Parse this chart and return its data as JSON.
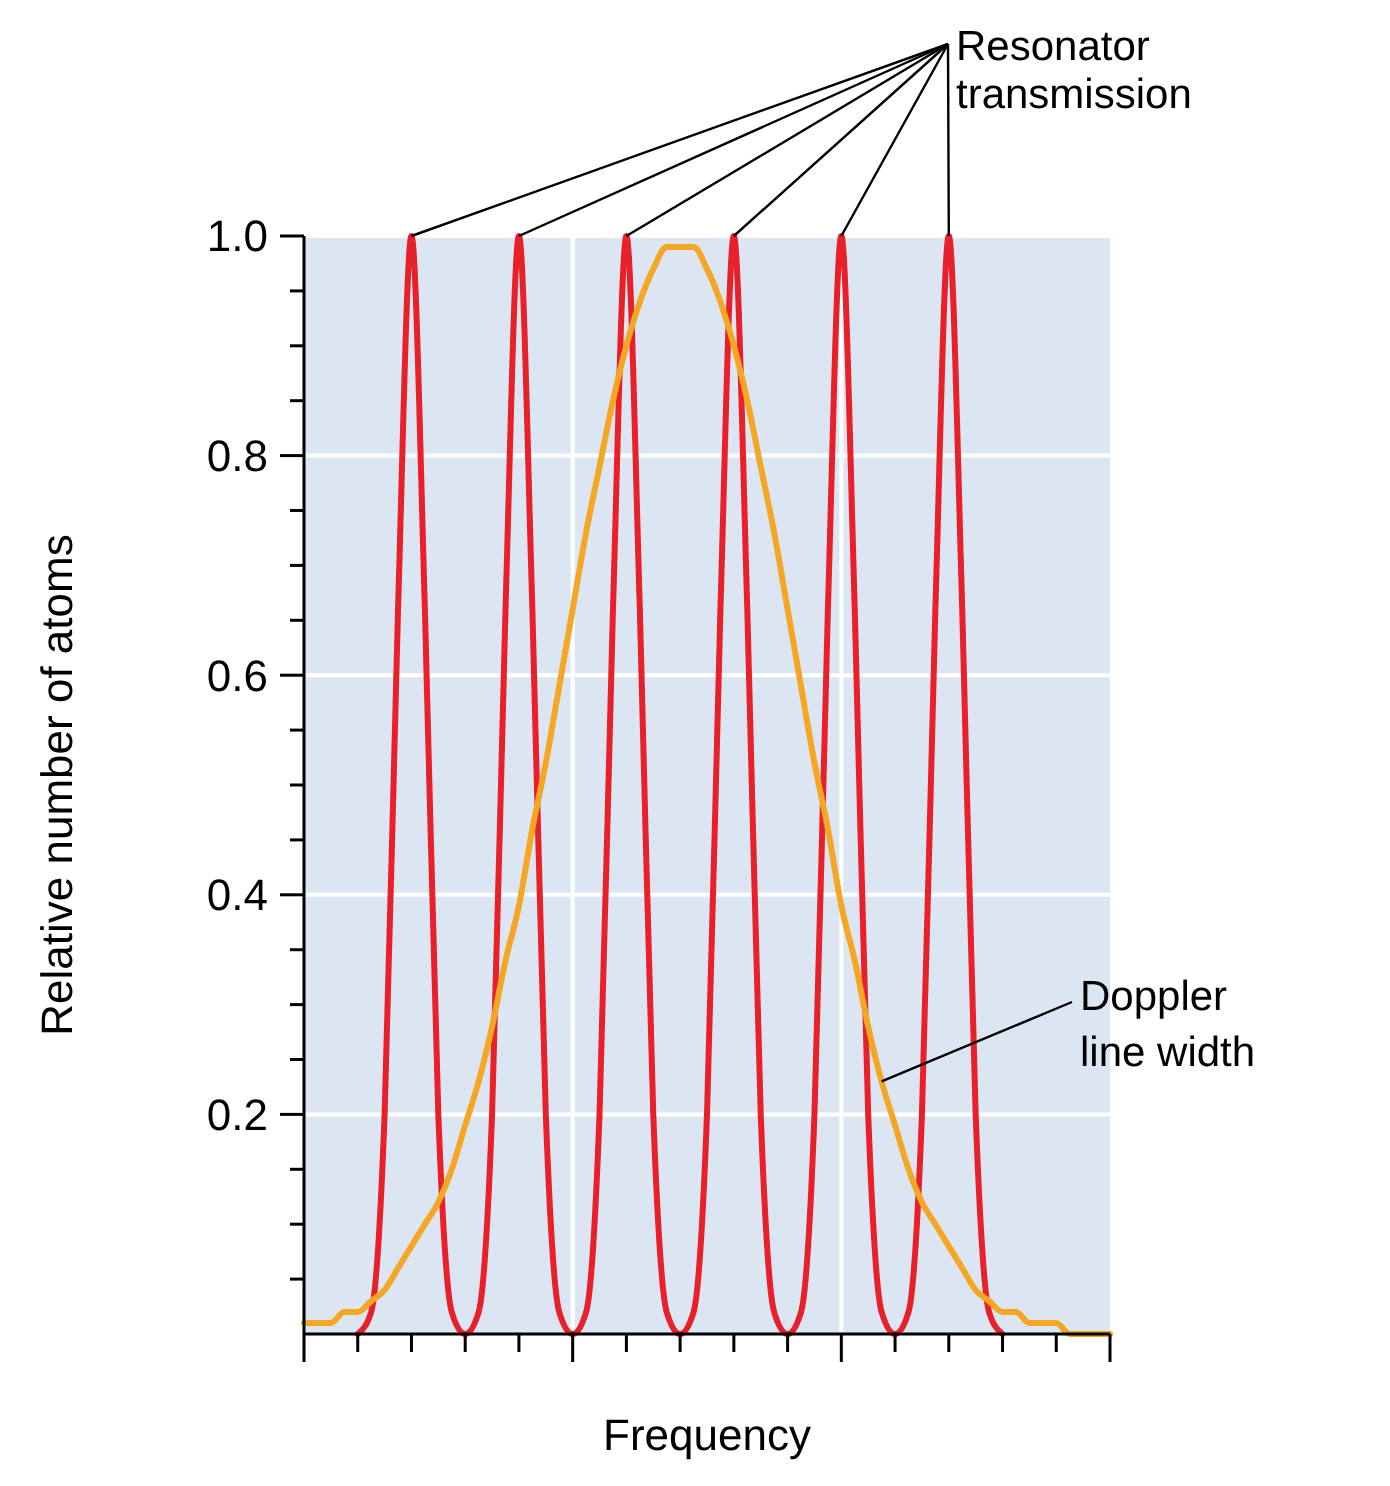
{
  "chart_data": {
    "type": "line",
    "xlabel": "Frequency",
    "ylabel": "Relative number of atoms",
    "categories": [
      null,
      null,
      null,
      null,
      null,
      null,
      null,
      null,
      null,
      null,
      null,
      null,
      null,
      null,
      null,
      null,
      null,
      null,
      null,
      null,
      null,
      null,
      null,
      null,
      null,
      null,
      null,
      null,
      null,
      null,
      null,
      null,
      null,
      null,
      null,
      null,
      null,
      null,
      null,
      null,
      null,
      null,
      null,
      null,
      null,
      null,
      null,
      null,
      null,
      null,
      null,
      null,
      null,
      null,
      null,
      null,
      null,
      null,
      null,
      null,
      null
    ],
    "series": [
      {
        "color": "#e8202a",
        "values": [
          null,
          null,
          null,
          null,
          0,
          0.02,
          0.2,
          0.66,
          1,
          0.66,
          0.2,
          0.02,
          0,
          0.02,
          0.2,
          0.66,
          1,
          0.66,
          0.2,
          0.02,
          0,
          0.02,
          0.2,
          0.66,
          1,
          0.66,
          0.2,
          0.02,
          0,
          0.02,
          0.2,
          0.66,
          1,
          0.66,
          0.2,
          0.02,
          0,
          0.02,
          0.2,
          0.66,
          1,
          0.66,
          0.2,
          0.02,
          0,
          0.02,
          0.2,
          0.66,
          1,
          0.66,
          0.2,
          0.02,
          0,
          null,
          null,
          null,
          null,
          null,
          null,
          null,
          null
        ]
      },
      {
        "color": "#f5a623",
        "values": [
          0.01,
          0.01,
          0.01,
          0.02,
          0.02,
          0.03,
          0.04,
          0.06,
          0.08,
          0.1,
          0.12,
          0.15,
          0.19,
          0.23,
          0.28,
          0.34,
          0.39,
          0.46,
          0.52,
          0.59,
          0.66,
          0.73,
          0.79,
          0.85,
          0.9,
          0.94,
          0.97,
          0.99,
          0.99,
          0.99,
          0.97,
          0.94,
          0.9,
          0.85,
          0.79,
          0.73,
          0.66,
          0.59,
          0.52,
          0.46,
          0.39,
          0.34,
          0.28,
          0.23,
          0.19,
          0.15,
          0.12,
          0.1,
          0.08,
          0.06,
          0.04,
          0.03,
          0.02,
          0.02,
          0.01,
          0.01,
          0.01,
          0,
          0,
          0,
          0
        ]
      }
    ],
    "ylim": [
      0,
      1
    ],
    "yticks": [
      {
        "value": 0.05,
        "label": null
      },
      {
        "value": 0.1,
        "label": null
      },
      {
        "value": 0.15,
        "label": null
      },
      {
        "value": 0.2,
        "label": "0.2"
      },
      {
        "value": 0.25,
        "label": null
      },
      {
        "value": 0.3,
        "label": null
      },
      {
        "value": 0.35,
        "label": null
      },
      {
        "value": 0.4,
        "label": "0.4"
      },
      {
        "value": 0.45,
        "label": null
      },
      {
        "value": 0.5,
        "label": null
      },
      {
        "value": 0.55,
        "label": null
      },
      {
        "value": 0.6,
        "label": "0.6"
      },
      {
        "value": 0.65,
        "label": null
      },
      {
        "value": 0.7,
        "label": null
      },
      {
        "value": 0.75,
        "label": null
      },
      {
        "value": 0.8,
        "label": "0.8"
      },
      {
        "value": 0.85,
        "label": null
      },
      {
        "value": 0.9,
        "label": null
      },
      {
        "value": 0.95,
        "label": null
      },
      {
        "value": 1,
        "label": "1.0"
      }
    ],
    "tick_labels": "y",
    "grid": true,
    "line_style": "solid",
    "marker": "none",
    "annotations": [
      "Resonator transmission",
      "Doppler line width"
    ]
  }
}
